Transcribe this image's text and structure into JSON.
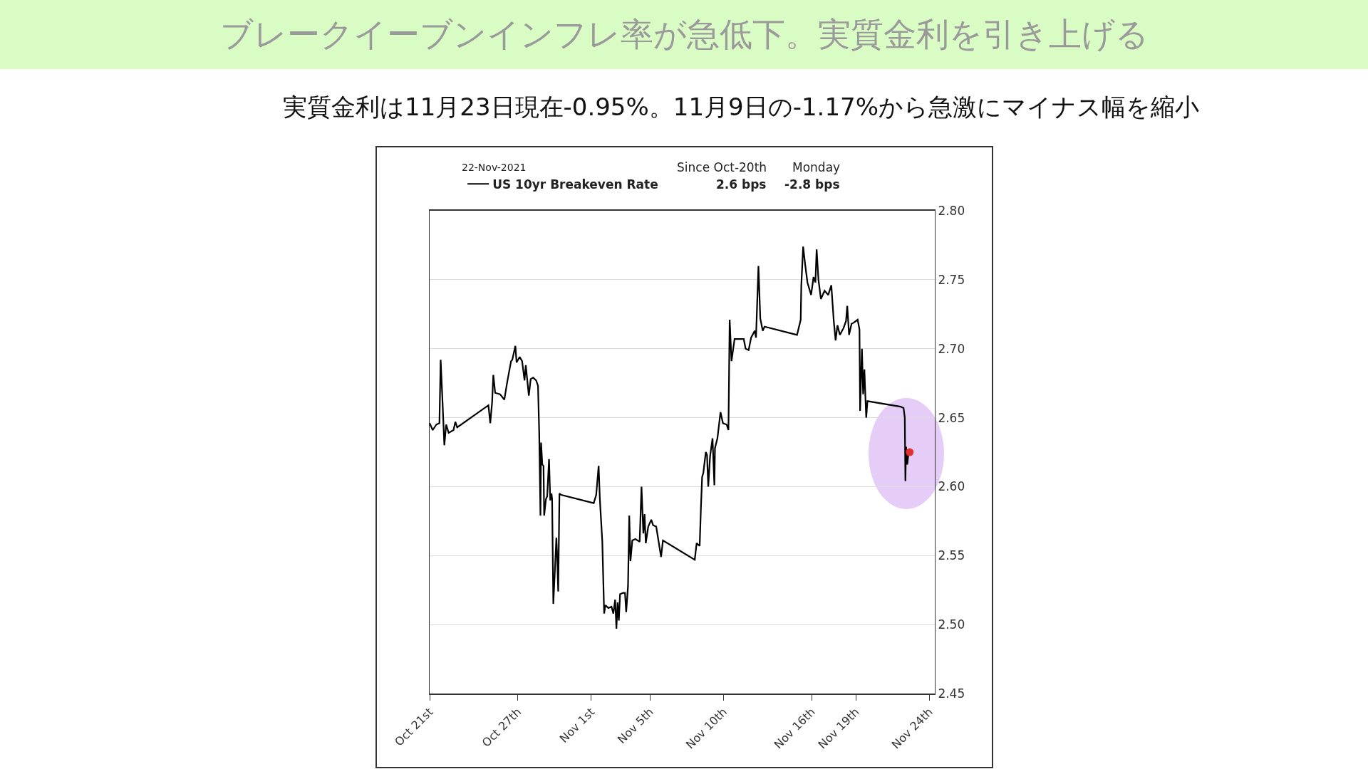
{
  "chart_data": {
    "type": "line",
    "title": "ブレークイーブンインフレ率が急低下。実質金利を引き上げる",
    "subtitle": "実質金利は11月23日現在-0.95%。11月9日の-1.17%から急激にマイナス幅を縮小",
    "annotations": [
      "22-Nov-2021",
      "Since Oct-20th",
      "Monday",
      "2.6 bps",
      "-2.8 bps"
    ],
    "series": [
      {
        "name": "US 10yr Breakeven Rate",
        "color": "#000000",
        "x": [
          "2021-10-21T00:00",
          "2021-10-21T05:00",
          "2021-10-21T11:00",
          "2021-10-21T16:00",
          "2021-10-21T18:00",
          "2021-10-21T21:00",
          "2021-10-22T00:00",
          "2021-10-22T03:00",
          "2021-10-22T07:00",
          "2021-10-22T15:00",
          "2021-10-22T18:00",
          "2021-10-22T21:00",
          "2021-10-25T00:00",
          "2021-10-25T03:00",
          "2021-10-25T06:00",
          "2021-10-25T08:00",
          "2021-10-25T11:00",
          "2021-10-25T19:00",
          "2021-10-26T02:00",
          "2021-10-26T06:00",
          "2021-10-26T08:00",
          "2021-10-26T13:00",
          "2021-10-26T15:00",
          "2021-10-26T20:00",
          "2021-10-26T22:00",
          "2021-10-27T03:00",
          "2021-10-27T07:00",
          "2021-10-27T11:00",
          "2021-10-27T13:00",
          "2021-10-27T18:00",
          "2021-10-27T21:00",
          "2021-10-28T01:00",
          "2021-10-28T06:00",
          "2021-10-28T09:00",
          "2021-10-28T11:00",
          "2021-10-28T13:00",
          "2021-10-28T14:00",
          "2021-10-28T16:00",
          "2021-10-28T18:00",
          "2021-10-28T19:00",
          "2021-10-28T22:00",
          "2021-10-29T00:00",
          "2021-10-29T03:00",
          "2021-10-29T05:00",
          "2021-10-29T07:00",
          "2021-10-29T08:00",
          "2021-10-29T10:00",
          "2021-10-29T15:00",
          "2021-10-29T16:00",
          "2021-10-29T18:00",
          "2021-10-29T20:00",
          "2021-10-29T23:00",
          "2021-11-01T04:00",
          "2021-11-01T08:00",
          "2021-11-01T12:00",
          "2021-11-01T14:00",
          "2021-11-01T18:00",
          "2021-11-01T21:00",
          "2021-11-01T23:00",
          "2021-11-02T04:00",
          "2021-11-02T09:00",
          "2021-11-02T12:00",
          "2021-11-02T15:00",
          "2021-11-02T17:00",
          "2021-11-02T19:00",
          "2021-11-02T21:00",
          "2021-11-02T23:00",
          "2021-11-03T04:00",
          "2021-11-03T07:00",
          "2021-11-03T09:00",
          "2021-11-03T12:00",
          "2021-11-03T14:00",
          "2021-11-03T16:00",
          "2021-11-03T19:00",
          "2021-11-04T00:00",
          "2021-11-04T07:00",
          "2021-11-04T10:00",
          "2021-11-04T13:00",
          "2021-11-04T15:00",
          "2021-11-04T17:00",
          "2021-11-04T21:00",
          "2021-11-05T02:00",
          "2021-11-05T05:00",
          "2021-11-05T10:00",
          "2021-11-05T14:00",
          "2021-11-05T18:00",
          "2021-11-05T21:00",
          "2021-11-08T01:00",
          "2021-11-08T04:00",
          "2021-11-08T09:00",
          "2021-11-08T11:00",
          "2021-11-08T13:00",
          "2021-11-08T15:00",
          "2021-11-08T19:00",
          "2021-11-08T21:00",
          "2021-11-08T23:00",
          "2021-11-09T02:00",
          "2021-11-09T06:00",
          "2021-11-09T09:00",
          "2021-11-09T10:00",
          "2021-11-09T14:00",
          "2021-11-09T19:00",
          "2021-11-09T23:00",
          "2021-11-10T05:00",
          "2021-11-10T08:00",
          "2021-11-10T10:00",
          "2021-11-10T13:00",
          "2021-11-10T18:00",
          "2021-11-11T09:00",
          "2021-11-11T12:00",
          "2021-11-11T17:00",
          "2021-11-11T21:00",
          "2021-11-12T03:00",
          "2021-11-12T05:00",
          "2021-11-12T09:00",
          "2021-11-12T12:00",
          "2021-11-12T16:00",
          "2021-11-12T19:00",
          "2021-11-15T00:00",
          "2021-11-15T06:00",
          "2021-11-15T07:00",
          "2021-11-15T10:00",
          "2021-11-15T13:00",
          "2021-11-15T17:00",
          "2021-11-15T23:00",
          "2021-11-16T03:00",
          "2021-11-16T06:00",
          "2021-11-16T08:00",
          "2021-11-16T11:00",
          "2021-11-16T15:00",
          "2021-11-16T21:00",
          "2021-11-17T03:00",
          "2021-11-17T08:00",
          "2021-11-17T12:00",
          "2021-11-17T15:00",
          "2021-11-17T18:00",
          "2021-11-17T22:00",
          "2021-11-18T04:00",
          "2021-11-18T08:00",
          "2021-11-18T10:00",
          "2021-11-18T13:00",
          "2021-11-18T17:00",
          "2021-11-18T21:00",
          "2021-11-19T03:00",
          "2021-11-19T06:00",
          "2021-11-19T07:00",
          "2021-11-19T10:00",
          "2021-11-19T12:00",
          "2021-11-19T14:00",
          "2021-11-19T16:00",
          "2021-11-19T17:00",
          "2021-11-19T19:00",
          "2021-11-22T01:00",
          "2021-11-22T06:00",
          "2021-11-22T08:00",
          "2021-11-22T09:00",
          "2021-11-22T10:00",
          "2021-11-22T12:00",
          "2021-11-22T14:00"
        ],
        "values": [
          2.646,
          2.641,
          2.645,
          2.646,
          2.692,
          2.662,
          2.63,
          2.645,
          2.639,
          2.641,
          2.647,
          2.643,
          2.659,
          2.646,
          2.661,
          2.681,
          2.668,
          2.667,
          2.663,
          2.674,
          2.679,
          2.691,
          2.692,
          2.702,
          2.69,
          2.694,
          2.691,
          2.677,
          2.688,
          2.666,
          2.678,
          2.679,
          2.677,
          2.673,
          2.638,
          2.579,
          2.632,
          2.616,
          2.615,
          2.579,
          2.591,
          2.593,
          2.62,
          2.59,
          2.595,
          2.591,
          2.515,
          2.563,
          2.553,
          2.524,
          2.595,
          2.594,
          2.588,
          2.594,
          2.615,
          2.591,
          2.56,
          2.508,
          2.514,
          2.512,
          2.513,
          2.508,
          2.518,
          2.497,
          2.516,
          2.503,
          2.522,
          2.523,
          2.523,
          2.509,
          2.528,
          2.579,
          2.546,
          2.561,
          2.562,
          2.56,
          2.6,
          2.566,
          2.58,
          2.559,
          2.571,
          2.576,
          2.572,
          2.571,
          2.56,
          2.549,
          2.561,
          2.547,
          2.559,
          2.557,
          2.584,
          2.607,
          2.61,
          2.625,
          2.623,
          2.6,
          2.622,
          2.635,
          2.601,
          2.628,
          2.635,
          2.654,
          2.646,
          2.645,
          2.641,
          2.721,
          2.691,
          2.707,
          2.707,
          2.7,
          2.699,
          2.708,
          2.713,
          2.708,
          2.76,
          2.722,
          2.713,
          2.716,
          2.71,
          2.721,
          2.746,
          2.774,
          2.762,
          2.748,
          2.739,
          2.752,
          2.748,
          2.772,
          2.75,
          2.736,
          2.742,
          2.739,
          2.746,
          2.72,
          2.706,
          2.717,
          2.71,
          2.715,
          2.72,
          2.731,
          2.71,
          2.718,
          2.719,
          2.721,
          2.714,
          2.655,
          2.7,
          2.667,
          2.685,
          2.661,
          2.65,
          2.662,
          2.658,
          2.657,
          2.65,
          2.604,
          2.629,
          2.616,
          2.624
        ]
      },
      {
        "type": "scatter",
        "marker": "circle",
        "color": "#e03030",
        "x": [
          "2021-11-22T16:00"
        ],
        "values": [
          2.625
        ]
      }
    ],
    "xlim": [
      "2021-10-21",
      "2021-11-24T09:00"
    ],
    "xticks": [
      {
        "value": "2021-10-21",
        "label": "Oct 21st"
      },
      {
        "value": "2021-10-27",
        "label": "Oct 27th"
      },
      {
        "value": "2021-11-01",
        "label": "Nov 1st"
      },
      {
        "value": "2021-11-05",
        "label": "Nov 5th"
      },
      {
        "value": "2021-11-10",
        "label": "Nov 10th"
      },
      {
        "value": "2021-11-16",
        "label": "Nov 16th"
      },
      {
        "value": "2021-11-19",
        "label": "Nov 19th"
      },
      {
        "value": "2021-11-24",
        "label": "Nov 24th"
      }
    ],
    "ylim": [
      2.45,
      2.8
    ],
    "yticks": [
      2.45,
      {
        "value": 2.5,
        "label": "2.50"
      },
      2.55,
      {
        "value": 2.6,
        "label": "2.60"
      },
      2.65,
      {
        "value": 2.7,
        "label": "2.70"
      },
      2.75,
      {
        "value": 2.8,
        "label": "2.80"
      }
    ],
    "grid": "y",
    "legend": "top",
    "marker": "none",
    "line_style": "solid"
  }
}
